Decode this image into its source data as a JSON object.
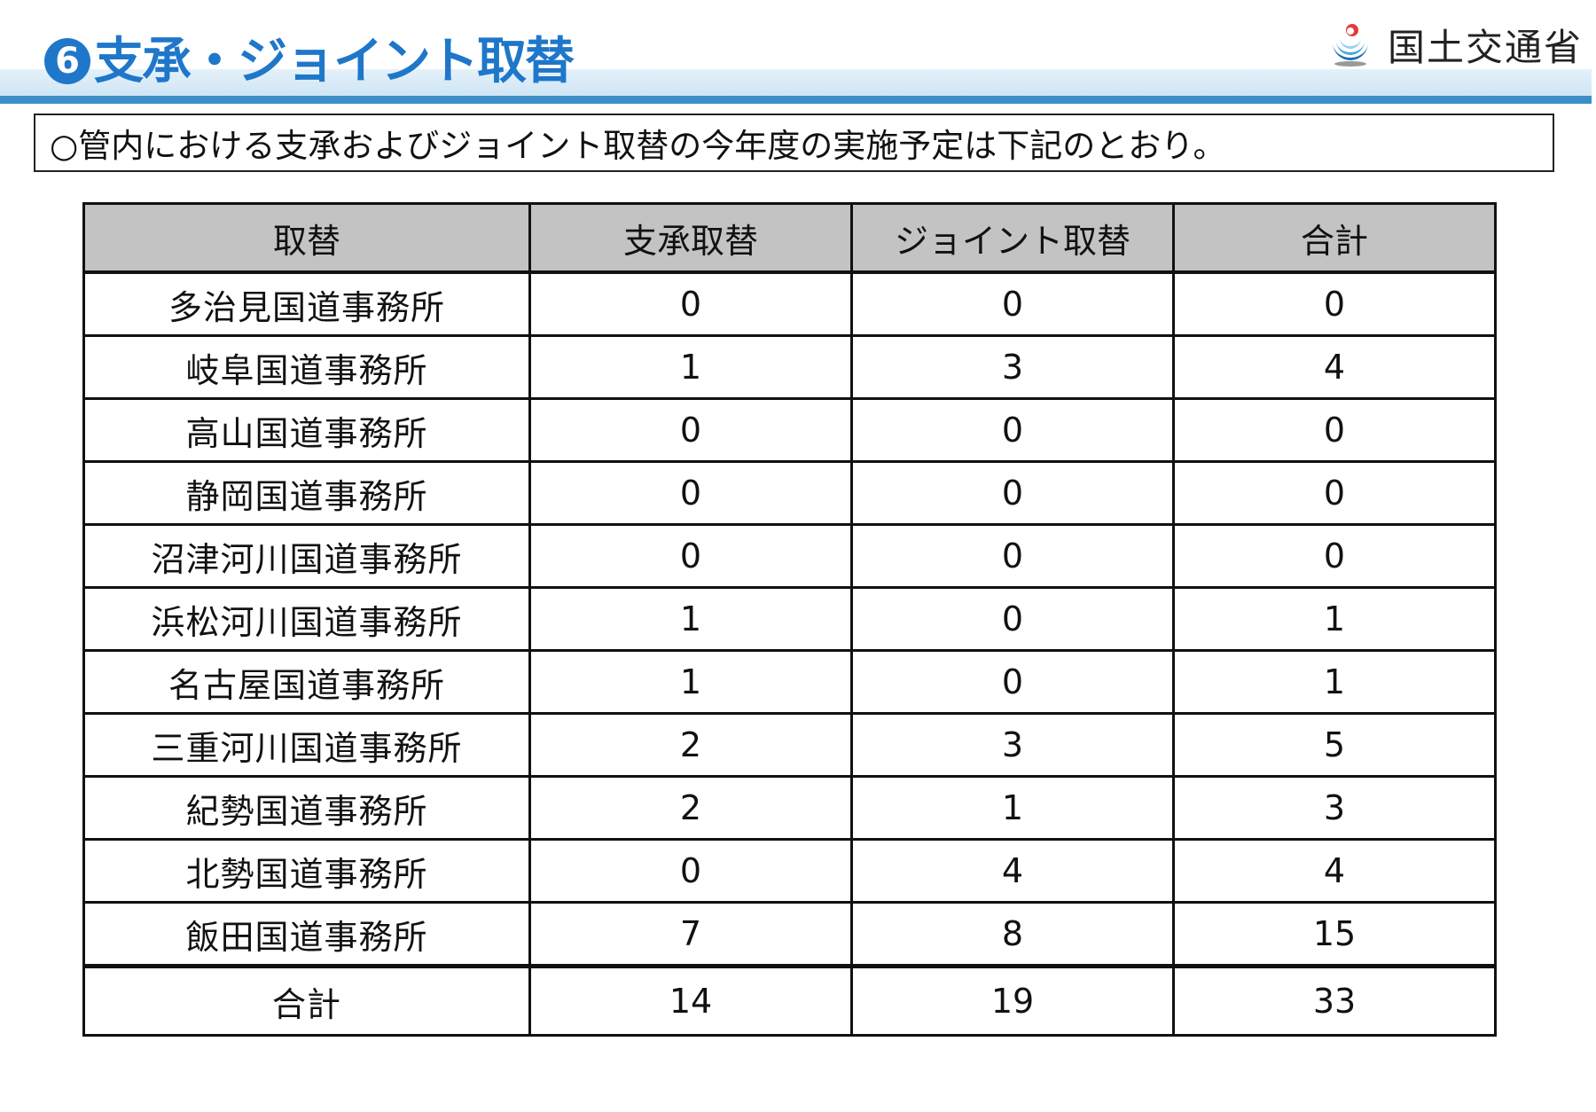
{
  "header": {
    "title_number": "6",
    "title": "支承・ジョイント取替",
    "ministry_name": "国土交通省",
    "colors": {
      "title": "#1f77c9",
      "band": "#cfe5f4",
      "rule": "#3c8fc6",
      "table_header_bg": "#c3c3c3"
    }
  },
  "note": {
    "text": "○管内における支承およびジョイント取替の今年度の実施予定は下記のとおり。"
  },
  "table": {
    "columns": [
      "取替",
      "支承取替",
      "ジョイント取替",
      "合計"
    ],
    "rows": [
      {
        "name": "多治見国道事務所",
        "bearing": "0",
        "joint": "0",
        "total": "0"
      },
      {
        "name": "岐阜国道事務所",
        "bearing": "1",
        "joint": "3",
        "total": "4"
      },
      {
        "name": "高山国道事務所",
        "bearing": "0",
        "joint": "0",
        "total": "0"
      },
      {
        "name": "静岡国道事務所",
        "bearing": "0",
        "joint": "0",
        "total": "0"
      },
      {
        "name": "沼津河川国道事務所",
        "bearing": "0",
        "joint": "0",
        "total": "0"
      },
      {
        "name": "浜松河川国道事務所",
        "bearing": "1",
        "joint": "0",
        "total": "1"
      },
      {
        "name": "名古屋国道事務所",
        "bearing": "1",
        "joint": "0",
        "total": "1"
      },
      {
        "name": "三重河川国道事務所",
        "bearing": "2",
        "joint": "3",
        "total": "5"
      },
      {
        "name": "紀勢国道事務所",
        "bearing": "2",
        "joint": "1",
        "total": "3"
      },
      {
        "name": "北勢国道事務所",
        "bearing": "0",
        "joint": "4",
        "total": "4"
      },
      {
        "name": "飯田国道事務所",
        "bearing": "7",
        "joint": "8",
        "total": "15"
      }
    ],
    "footer": {
      "name": "合計",
      "bearing": "14",
      "joint": "19",
      "total": "33"
    }
  }
}
